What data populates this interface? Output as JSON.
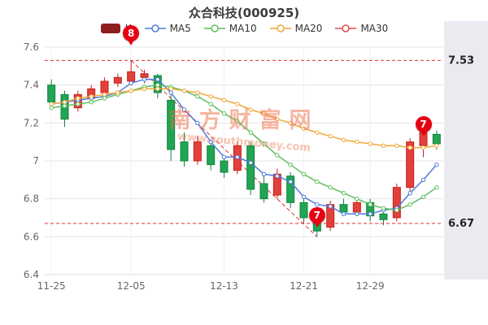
{
  "title": "众合科技(000925)",
  "watermark": {
    "name": "南方财富网",
    "url": "www.southmoney.com"
  },
  "legend": {
    "items": [
      {
        "label": "K",
        "type": "candle",
        "color": "#8d1f1f"
      },
      {
        "label": "MA5",
        "type": "line",
        "color": "#4f7bd9"
      },
      {
        "label": "MA10",
        "type": "line",
        "color": "#5fbf5f"
      },
      {
        "label": "MA20",
        "type": "line",
        "color": "#f0a73a"
      },
      {
        "label": "MA30",
        "type": "line",
        "color": "#e34c4c"
      }
    ]
  },
  "colors": {
    "up": "#e2403a",
    "up_border": "#c5211b",
    "down": "#21a453",
    "down_border": "#16833f",
    "ref_line": "#e03030",
    "badge": "#e60012",
    "grid": "#e4e6ec",
    "vgrid": "#f0f1f5",
    "axis_text": "#666666",
    "ref_text": "#222222",
    "right_panel": "#e9ebf0",
    "axis_line": "#dddddd"
  },
  "chart_data": {
    "type": "candlestick",
    "title": "众合科技(000925)",
    "ylim": [
      6.4,
      7.6
    ],
    "y_ticks": [
      {
        "value": 6.4,
        "label": "6.4"
      },
      {
        "value": 6.6,
        "label": "6.6"
      },
      {
        "value": 6.8,
        "label": "6.8"
      },
      {
        "value": 7.0,
        "label": "7"
      },
      {
        "value": 7.2,
        "label": "7.2"
      },
      {
        "value": 7.4,
        "label": "7.4"
      },
      {
        "value": 7.6,
        "label": "7.6"
      }
    ],
    "x_ticks": [
      {
        "index": 0,
        "label": "11-25"
      },
      {
        "index": 6,
        "label": "12-05"
      },
      {
        "index": 13,
        "label": "12-13"
      },
      {
        "index": 19,
        "label": "12-21"
      },
      {
        "index": 24,
        "label": "12-29"
      }
    ],
    "candles": [
      [
        7.4,
        7.43,
        7.28,
        7.31
      ],
      [
        7.35,
        7.37,
        7.18,
        7.22
      ],
      [
        7.28,
        7.37,
        7.26,
        7.35
      ],
      [
        7.33,
        7.4,
        7.31,
        7.38
      ],
      [
        7.36,
        7.44,
        7.34,
        7.42
      ],
      [
        7.41,
        7.46,
        7.39,
        7.44
      ],
      [
        7.42,
        7.53,
        7.4,
        7.47
      ],
      [
        7.44,
        7.48,
        7.41,
        7.46
      ],
      [
        7.45,
        7.46,
        7.33,
        7.36
      ],
      [
        7.32,
        7.35,
        7.0,
        7.06
      ],
      [
        7.1,
        7.15,
        6.97,
        7.0
      ],
      [
        7.0,
        7.13,
        6.98,
        7.1
      ],
      [
        7.08,
        7.1,
        6.95,
        6.98
      ],
      [
        7.0,
        7.03,
        6.91,
        6.94
      ],
      [
        6.95,
        7.1,
        6.93,
        7.08
      ],
      [
        7.08,
        7.1,
        6.82,
        6.85
      ],
      [
        6.88,
        6.92,
        6.78,
        6.8
      ],
      [
        6.82,
        6.96,
        6.8,
        6.93
      ],
      [
        6.92,
        6.94,
        6.75,
        6.78
      ],
      [
        6.78,
        6.8,
        6.67,
        6.7
      ],
      [
        6.72,
        6.74,
        6.6,
        6.63
      ],
      [
        6.65,
        6.79,
        6.63,
        6.77
      ],
      [
        6.77,
        6.8,
        6.71,
        6.73
      ],
      [
        6.73,
        6.8,
        6.71,
        6.78
      ],
      [
        6.78,
        6.8,
        6.68,
        6.71
      ],
      [
        6.72,
        6.76,
        6.66,
        6.69
      ],
      [
        6.7,
        6.88,
        6.68,
        6.86
      ],
      [
        6.86,
        7.12,
        6.84,
        7.1
      ],
      [
        7.08,
        7.2,
        7.02,
        7.15
      ],
      [
        7.14,
        7.16,
        7.06,
        7.09
      ]
    ],
    "series": [
      {
        "name": "MA5",
        "color": "#4f7bd9",
        "values": [
          7.3,
          7.31,
          7.32,
          7.33,
          7.34,
          7.36,
          7.41,
          7.43,
          7.43,
          7.36,
          7.27,
          7.2,
          7.1,
          7.02,
          7.02,
          6.99,
          6.93,
          6.92,
          6.89,
          6.81,
          6.77,
          6.76,
          6.72,
          6.72,
          6.72,
          6.74,
          6.75,
          6.83,
          6.9,
          6.98
        ]
      },
      {
        "name": "MA10",
        "color": "#5fbf5f",
        "values": [
          7.28,
          7.29,
          7.3,
          7.31,
          7.33,
          7.35,
          7.37,
          7.39,
          7.4,
          7.39,
          7.37,
          7.34,
          7.3,
          7.25,
          7.21,
          7.15,
          7.09,
          7.03,
          6.98,
          6.93,
          6.89,
          6.86,
          6.83,
          6.8,
          6.77,
          6.75,
          6.74,
          6.77,
          6.81,
          6.86
        ]
      },
      {
        "name": "MA20",
        "color": "#f0a73a",
        "values": [
          7.3,
          7.31,
          7.33,
          7.34,
          7.35,
          7.36,
          7.37,
          7.38,
          7.38,
          7.38,
          7.37,
          7.36,
          7.34,
          7.32,
          7.3,
          7.27,
          7.25,
          7.22,
          7.2,
          7.17,
          7.15,
          7.13,
          7.11,
          7.1,
          7.09,
          7.08,
          7.08,
          7.07,
          7.07,
          7.08
        ]
      }
    ],
    "ref_lines": [
      {
        "value": 7.53,
        "label": "7.53"
      },
      {
        "value": 6.67,
        "label": "6.67"
      }
    ],
    "trend_line": {
      "from_index": 6,
      "from_value": 7.53,
      "to_index": 20,
      "to_value": 6.6
    },
    "badges": [
      {
        "label": "8",
        "index": 6,
        "anchor": 7.58
      },
      {
        "label": "7",
        "index": 20,
        "anchor": 6.62
      },
      {
        "label": "7",
        "index": 28,
        "anchor": 7.1
      }
    ]
  }
}
